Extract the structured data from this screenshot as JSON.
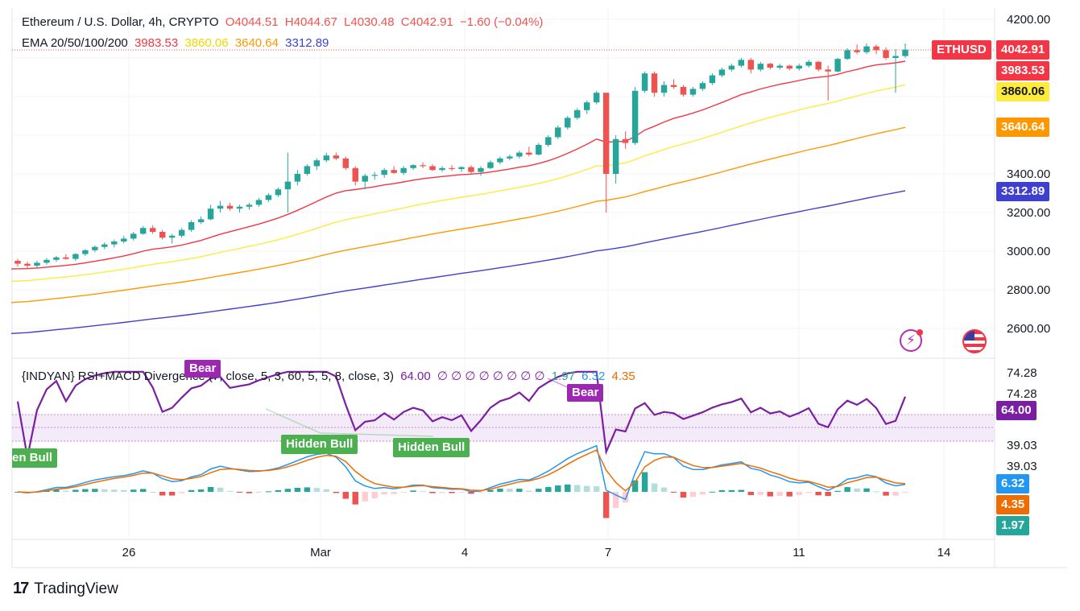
{
  "header": {
    "symbol_line": "Ethereum / U.S. Dollar, 4h, CRYPTO",
    "open": "O4044.51",
    "high": "H4044.67",
    "low": "L4030.48",
    "close": "C4042.91",
    "change": "−1.60 (−0.04%)",
    "ema_title": "EMA 20/50/100/200",
    "ema20": "3983.53",
    "ema50": "3860.06",
    "ema100": "3640.64",
    "ema200": "3312.89",
    "indicator_title": "{INDYAN} RSI+MACD Divergence (7, close, 5, 3, 60, 5, 5, 8, close, 3)",
    "ind_val_rsi": "64.00",
    "ind_zeros": "∅ ∅ ∅ ∅ ∅ ∅ ∅ ∅",
    "ind_val_hist": "1.97",
    "ind_val_macd": "6.32",
    "ind_val_signal": "4.35"
  },
  "price_axis": {
    "ticks": [
      "4200.00",
      "3400.00",
      "3200.00",
      "3000.00",
      "2800.00",
      "2600.00"
    ],
    "tags": {
      "symbol": "ETHUSD",
      "last": "4042.91",
      "ema20": "3983.53",
      "ema50": "3860.06",
      "ema100": "3640.64",
      "ema200": "3312.89"
    }
  },
  "indicator_axis": {
    "ticks": [
      "74.28",
      "74.28",
      "39.03",
      "39.03"
    ],
    "tags": {
      "rsi": "64.00",
      "macd": "6.32",
      "signal": "4.35",
      "hist": "1.97"
    }
  },
  "time_axis": [
    "26",
    "Mar",
    "4",
    "7",
    "11",
    "14"
  ],
  "annotations": {
    "bear1": "Bear",
    "bear2": "Bear",
    "hb0": "en Bull",
    "hb1": "Hidden Bull",
    "hb2": "Hidden Bull"
  },
  "footer": {
    "brand": "TradingView",
    "logo": "17"
  },
  "colors": {
    "up": "#26a69a",
    "down": "#ef5350",
    "ema20": "#f23645",
    "ema50": "#ffeb3b",
    "ema100": "#ff9800",
    "ema200": "#3f3fd0",
    "rsi": "#7b1fa2",
    "macd": "#2196f3",
    "signal": "#ef6c00",
    "bear_tag": "#9c27b0",
    "bull_tag": "#4caf50"
  },
  "chart_data": {
    "type": "candlestick",
    "series_names": [
      "EMA 20",
      "EMA 50",
      "EMA 100",
      "EMA 200"
    ],
    "price_range": [
      2530,
      4260
    ],
    "candles_approx": [
      [
        2950,
        2960,
        2920,
        2935
      ],
      [
        2935,
        2945,
        2910,
        2925
      ],
      [
        2925,
        2950,
        2915,
        2940
      ],
      [
        2940,
        2965,
        2930,
        2955
      ],
      [
        2955,
        2975,
        2945,
        2968
      ],
      [
        2968,
        2985,
        2955,
        2960
      ],
      [
        2960,
        2990,
        2950,
        2985
      ],
      [
        2985,
        3010,
        2975,
        3005
      ],
      [
        3005,
        3030,
        2995,
        3022
      ],
      [
        3022,
        3045,
        3010,
        3035
      ],
      [
        3035,
        3060,
        3020,
        3050
      ],
      [
        3050,
        3080,
        3040,
        3065
      ],
      [
        3065,
        3100,
        3055,
        3090
      ],
      [
        3090,
        3130,
        3085,
        3120
      ],
      [
        3120,
        3135,
        3090,
        3100
      ],
      [
        3100,
        3110,
        3060,
        3070
      ],
      [
        3070,
        3090,
        3040,
        3080
      ],
      [
        3080,
        3120,
        3070,
        3110
      ],
      [
        3110,
        3160,
        3100,
        3150
      ],
      [
        3150,
        3180,
        3140,
        3165
      ],
      [
        3165,
        3240,
        3160,
        3220
      ],
      [
        3220,
        3260,
        3200,
        3235
      ],
      [
        3235,
        3250,
        3210,
        3220
      ],
      [
        3220,
        3240,
        3200,
        3230
      ],
      [
        3230,
        3250,
        3215,
        3240
      ],
      [
        3240,
        3275,
        3230,
        3265
      ],
      [
        3265,
        3300,
        3255,
        3290
      ],
      [
        3290,
        3330,
        3280,
        3320
      ],
      [
        3320,
        3510,
        3200,
        3360
      ],
      [
        3360,
        3420,
        3340,
        3400
      ],
      [
        3400,
        3450,
        3390,
        3440
      ],
      [
        3440,
        3480,
        3420,
        3470
      ],
      [
        3470,
        3510,
        3460,
        3495
      ],
      [
        3495,
        3510,
        3470,
        3480
      ],
      [
        3480,
        3490,
        3420,
        3430
      ],
      [
        3430,
        3440,
        3340,
        3360
      ],
      [
        3360,
        3400,
        3320,
        3390
      ],
      [
        3390,
        3410,
        3370,
        3395
      ],
      [
        3395,
        3430,
        3380,
        3420
      ],
      [
        3420,
        3440,
        3400,
        3405
      ],
      [
        3405,
        3440,
        3395,
        3430
      ],
      [
        3430,
        3450,
        3420,
        3445
      ],
      [
        3445,
        3460,
        3430,
        3440
      ],
      [
        3440,
        3450,
        3415,
        3420
      ],
      [
        3420,
        3440,
        3410,
        3430
      ],
      [
        3430,
        3445,
        3415,
        3425
      ],
      [
        3425,
        3440,
        3410,
        3435
      ],
      [
        3435,
        3445,
        3400,
        3410
      ],
      [
        3410,
        3440,
        3390,
        3430
      ],
      [
        3430,
        3470,
        3425,
        3460
      ],
      [
        3460,
        3490,
        3450,
        3480
      ],
      [
        3480,
        3500,
        3470,
        3490
      ],
      [
        3490,
        3520,
        3480,
        3510
      ],
      [
        3510,
        3540,
        3490,
        3500
      ],
      [
        3500,
        3560,
        3495,
        3550
      ],
      [
        3550,
        3600,
        3540,
        3590
      ],
      [
        3590,
        3650,
        3580,
        3640
      ],
      [
        3640,
        3700,
        3630,
        3690
      ],
      [
        3690,
        3740,
        3680,
        3730
      ],
      [
        3730,
        3780,
        3710,
        3770
      ],
      [
        3770,
        3830,
        3760,
        3820
      ],
      [
        3820,
        3760,
        3200,
        3400
      ],
      [
        3400,
        3600,
        3350,
        3580
      ],
      [
        3580,
        3620,
        3530,
        3560
      ],
      [
        3560,
        3850,
        3550,
        3830
      ],
      [
        3830,
        3930,
        3820,
        3920
      ],
      [
        3920,
        3930,
        3800,
        3820
      ],
      [
        3820,
        3880,
        3800,
        3860
      ],
      [
        3860,
        3890,
        3840,
        3850
      ],
      [
        3850,
        3860,
        3800,
        3810
      ],
      [
        3810,
        3850,
        3800,
        3840
      ],
      [
        3840,
        3880,
        3830,
        3870
      ],
      [
        3870,
        3920,
        3860,
        3910
      ],
      [
        3910,
        3950,
        3900,
        3940
      ],
      [
        3940,
        3970,
        3930,
        3960
      ],
      [
        3960,
        4000,
        3950,
        3990
      ],
      [
        3990,
        4000,
        3920,
        3940
      ],
      [
        3940,
        3980,
        3930,
        3970
      ],
      [
        3970,
        3975,
        3940,
        3950
      ],
      [
        3950,
        3970,
        3940,
        3960
      ],
      [
        3960,
        3965,
        3935,
        3945
      ],
      [
        3945,
        3970,
        3935,
        3960
      ],
      [
        3960,
        3990,
        3950,
        3980
      ],
      [
        3980,
        3985,
        3930,
        3940
      ],
      [
        3940,
        3960,
        3780,
        3930
      ],
      [
        3930,
        4000,
        3925,
        3995
      ],
      [
        3995,
        4050,
        3990,
        4040
      ],
      [
        4040,
        4070,
        4020,
        4030
      ],
      [
        4030,
        4075,
        4020,
        4060
      ],
      [
        4060,
        4070,
        4020,
        4040
      ],
      [
        4040,
        4055,
        3990,
        4000
      ],
      [
        4000,
        4045,
        3820,
        4010
      ],
      [
        4010,
        4075,
        4000,
        4042.91
      ]
    ],
    "ema_last": {
      "ema20": 3983.53,
      "ema50": 3860.06,
      "ema100": 3640.64,
      "ema200": 3312.89
    },
    "indicator": {
      "rsi_last": 64.0,
      "macd_last": 6.32,
      "signal_last": 4.35,
      "hist_last": 1.97,
      "rsi_band": [
        39.03,
        74.28
      ]
    },
    "legend": "none",
    "grid": true
  }
}
